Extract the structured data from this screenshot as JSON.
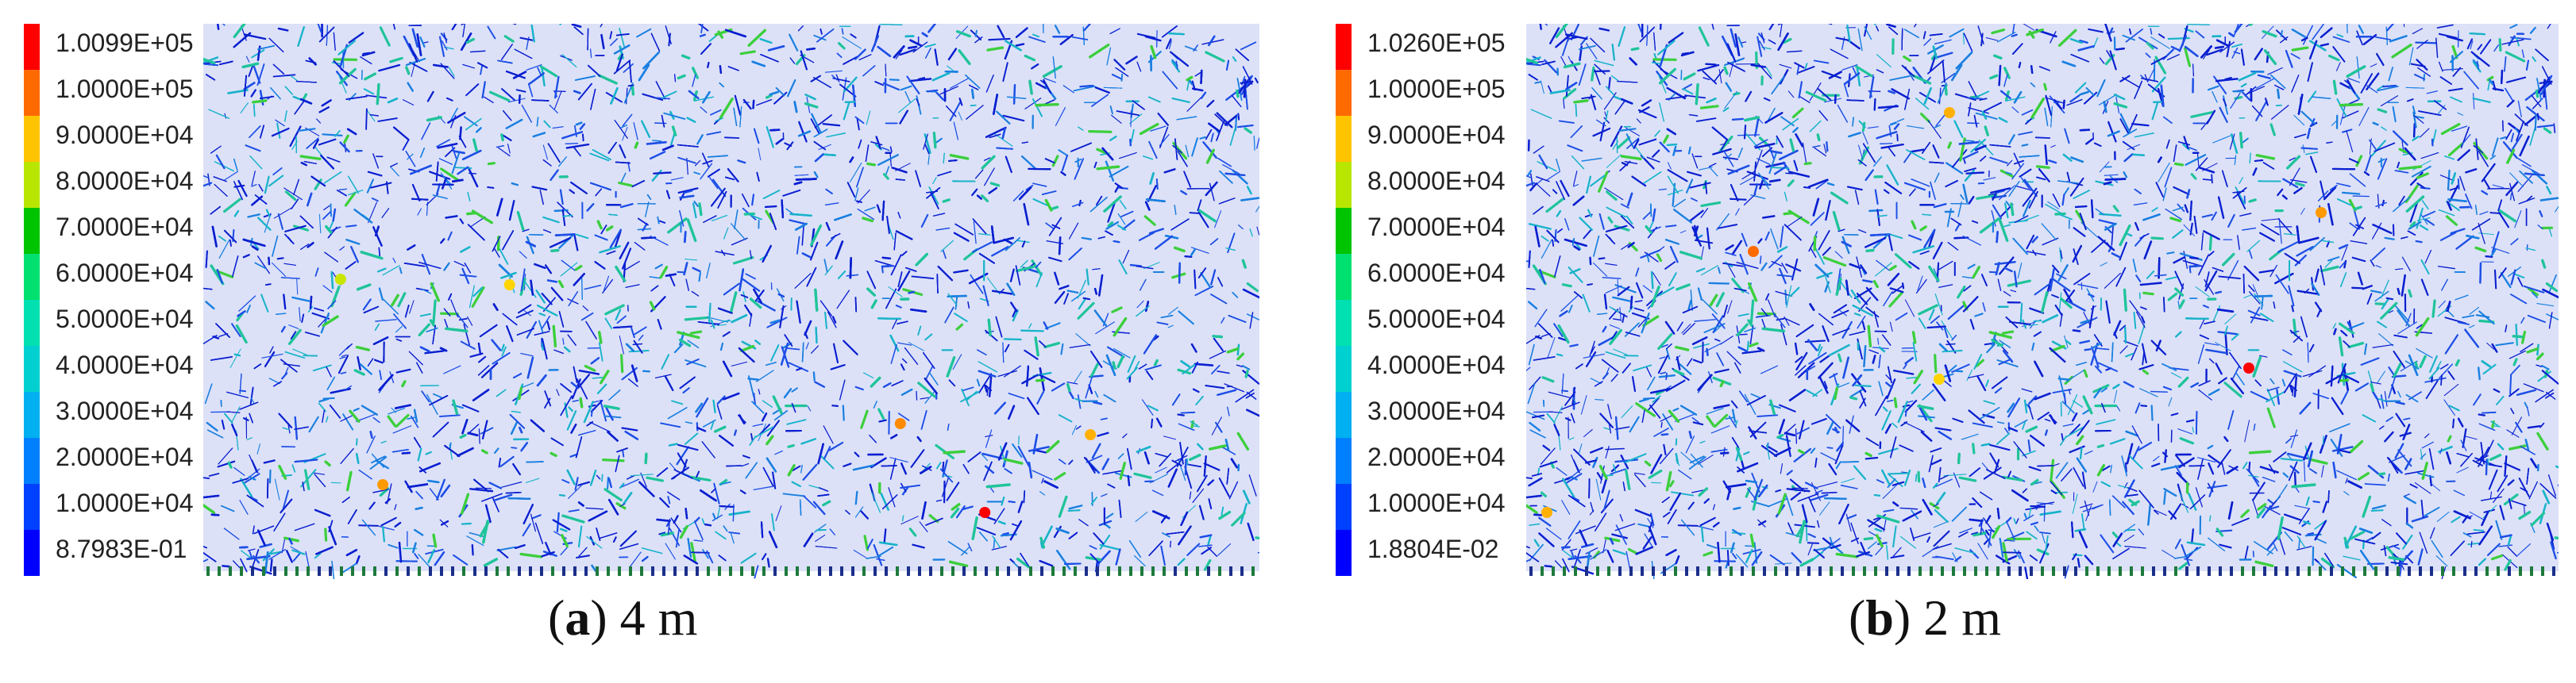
{
  "panels": [
    {
      "caption": {
        "letter": "a",
        "text": "4 m"
      },
      "legend": [
        {
          "label": "1.0099E+05",
          "color": "#ff0000"
        },
        {
          "label": "1.0000E+05",
          "color": "#ff6a00"
        },
        {
          "label": "9.0000E+04",
          "color": "#ffc400"
        },
        {
          "label": "8.0000E+04",
          "color": "#b8e600"
        },
        {
          "label": "7.0000E+04",
          "color": "#00c400"
        },
        {
          "label": "6.0000E+04",
          "color": "#00e070"
        },
        {
          "label": "5.0000E+04",
          "color": "#00e0b0"
        },
        {
          "label": "4.0000E+04",
          "color": "#00d0d0"
        },
        {
          "label": "3.0000E+04",
          "color": "#00b0f0"
        },
        {
          "label": "2.0000E+04",
          "color": "#0080ff"
        },
        {
          "label": "1.0000E+04",
          "color": "#0040ff"
        },
        {
          "label": "8.7983E-01",
          "color": "#0000ff"
        }
      ]
    },
    {
      "caption": {
        "letter": "b",
        "text": "2 m"
      },
      "legend": [
        {
          "label": "1.0260E+05",
          "color": "#ff0000"
        },
        {
          "label": "1.0000E+05",
          "color": "#ff6a00"
        },
        {
          "label": "9.0000E+04",
          "color": "#ffc400"
        },
        {
          "label": "8.0000E+04",
          "color": "#b8e600"
        },
        {
          "label": "7.0000E+04",
          "color": "#00c400"
        },
        {
          "label": "6.0000E+04",
          "color": "#00e070"
        },
        {
          "label": "5.0000E+04",
          "color": "#00e0b0"
        },
        {
          "label": "4.0000E+04",
          "color": "#00d0d0"
        },
        {
          "label": "3.0000E+04",
          "color": "#00b0f0"
        },
        {
          "label": "2.0000E+04",
          "color": "#0080ff"
        },
        {
          "label": "1.0000E+04",
          "color": "#0040ff"
        },
        {
          "label": "1.8804E-02",
          "color": "#0000ff"
        }
      ]
    }
  ]
}
